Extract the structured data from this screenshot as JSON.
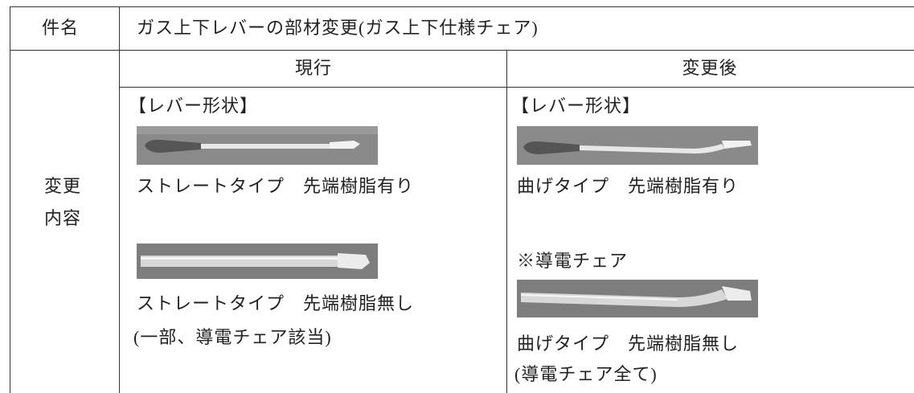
{
  "table": {
    "subject_label": "件名",
    "subject": "ガス上下レバーの部材変更(ガス上下仕様チェア)",
    "col_headers": [
      "現行",
      "変更後"
    ],
    "row_label": [
      "変更",
      "内容"
    ],
    "columns": [
      {
        "heading": "【レバー形状】",
        "items": [
          {
            "caption": [
              "ストレートタイプ　先端樹脂有り"
            ]
          },
          {
            "caption": [
              "ストレートタイプ　先端樹脂無し",
              "(一部、導電チェア該当)"
            ]
          }
        ]
      },
      {
        "heading": "【レバー形状】",
        "items": [
          {
            "caption": [
              "曲げタイプ　先端樹脂有り"
            ]
          },
          {
            "note": "※導電チェア",
            "caption": [
              "曲げタイプ　先端樹脂無し",
              "(導電チェア全て)"
            ]
          }
        ]
      }
    ]
  }
}
